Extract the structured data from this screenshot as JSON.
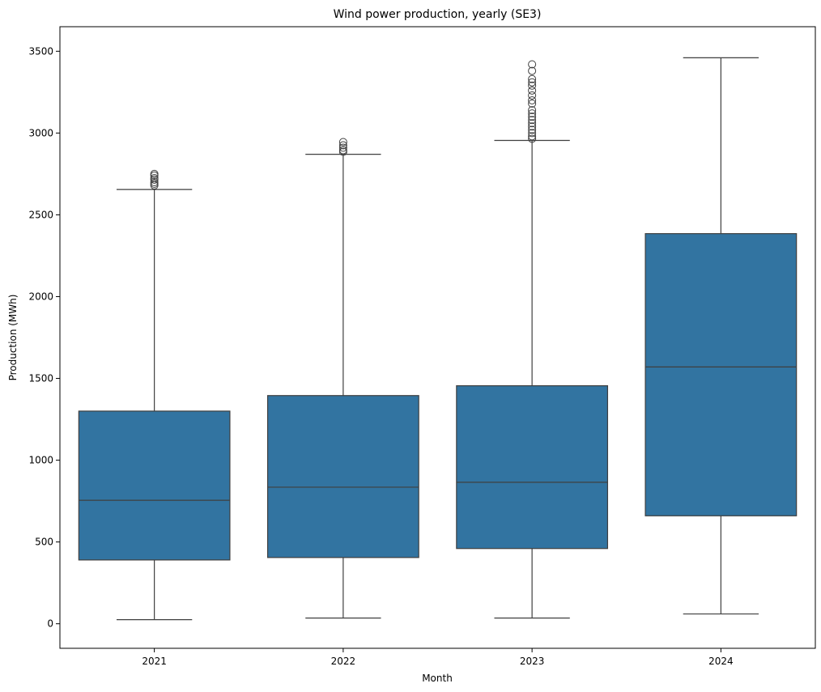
{
  "chart_data": {
    "type": "box",
    "title": "Wind power production, yearly (SE3)",
    "xlabel": "Month",
    "ylabel": "Production (MWh)",
    "ylim": [
      -150,
      3650
    ],
    "yticks": [
      0,
      500,
      1000,
      1500,
      2000,
      2500,
      3000,
      3500
    ],
    "grid": false,
    "categories": [
      "2021",
      "2022",
      "2023",
      "2024"
    ],
    "box_color": "#3274a1",
    "line_color": "#3f3f3f",
    "boxes": [
      {
        "category": "2021",
        "whisker_low": 25,
        "q1": 390,
        "median": 755,
        "q3": 1300,
        "whisker_high": 2655,
        "outliers": [
          2680,
          2690,
          2700,
          2715,
          2725,
          2740,
          2750
        ]
      },
      {
        "category": "2022",
        "whisker_low": 35,
        "q1": 405,
        "median": 835,
        "q3": 1395,
        "whisker_high": 2870,
        "outliers": [
          2885,
          2895,
          2910,
          2925,
          2945
        ]
      },
      {
        "category": "2023",
        "whisker_low": 35,
        "q1": 460,
        "median": 865,
        "q3": 1455,
        "whisker_high": 2955,
        "outliers": [
          2965,
          2980,
          3000,
          3020,
          3040,
          3060,
          3080,
          3100,
          3120,
          3140,
          3180,
          3200,
          3230,
          3260,
          3290,
          3310,
          3330,
          3380,
          3420
        ]
      },
      {
        "category": "2024",
        "whisker_low": 60,
        "q1": 660,
        "median": 1570,
        "q3": 2385,
        "whisker_high": 3460,
        "outliers": []
      }
    ]
  }
}
